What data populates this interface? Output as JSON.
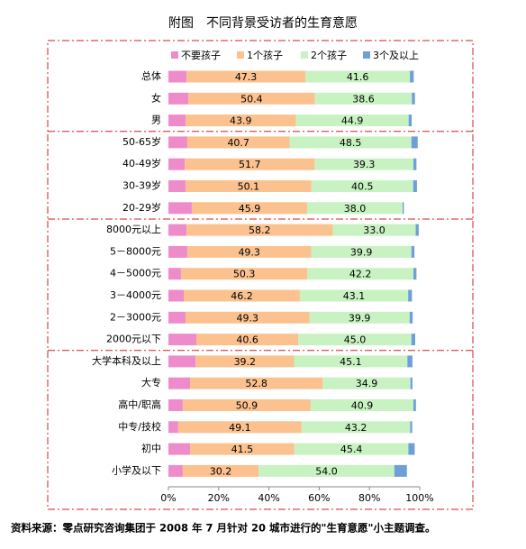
{
  "chart_data": {
    "type": "stacked-barh",
    "title": "附图　不同背景受访者的生育意愿",
    "source": "资料来源：零点研究咨询集团于 2008 年 7 月针对 20 城市进行的\"生育意愿\"小主题调查。",
    "categories": [
      "总体",
      "女",
      "男",
      "50-65岁",
      "40-49岁",
      "30-39岁",
      "20-29岁",
      "8000元以上",
      "5－8000元",
      "4－5000元",
      "3－4000元",
      "2－3000元",
      "2000元以下",
      "大学本科及以上",
      "大专",
      "高中/职高",
      "中专/技校",
      "初中",
      "小学及以下"
    ],
    "series": [
      {
        "name": "不要孩子",
        "color": "#ee8ccb",
        "values": [
          7.2,
          7.9,
          6.8,
          7.5,
          6.5,
          6.8,
          9.3,
          7.2,
          7.5,
          5.0,
          6.1,
          6.8,
          11.1,
          10.8,
          8.6,
          5.7,
          3.9,
          8.6,
          5.7
        ]
      },
      {
        "name": "1个孩子",
        "color": "#fbc28f",
        "values": [
          47.3,
          50.4,
          43.9,
          40.7,
          51.7,
          50.1,
          45.9,
          58.2,
          49.3,
          50.3,
          46.2,
          49.3,
          40.6,
          39.2,
          52.8,
          50.9,
          49.1,
          41.5,
          30.2
        ]
      },
      {
        "name": "2个孩子",
        "color": "#c8f2c2",
        "values": [
          41.6,
          38.6,
          44.9,
          48.5,
          39.3,
          40.5,
          38,
          33,
          39.9,
          42.2,
          43.1,
          39.9,
          45,
          45.1,
          34.9,
          40.9,
          43.2,
          45.4,
          54
        ],
        "value_labels": [
          "41.6",
          "38.6",
          "44.9",
          "48.5",
          "39.3",
          "40.5",
          "38.0",
          "33.0",
          "39.9",
          "42.2",
          "43.1",
          "39.9",
          "45.0",
          "45.1",
          "34.9",
          "40.9",
          "43.2",
          "45.4",
          "54.0"
        ]
      },
      {
        "name": "3个及以上",
        "color": "#6f9fd8",
        "values": [
          1.5,
          1.2,
          1.2,
          2.5,
          1.2,
          1.5,
          0.5,
          1.2,
          1.2,
          1.2,
          1.5,
          1.2,
          1.5,
          2.0,
          0.8,
          1.0,
          0.8,
          2.5,
          5.0
        ]
      }
    ],
    "xlim": [
      0,
      100
    ],
    "xticks": [
      {
        "value": 0,
        "label": "0%"
      },
      {
        "value": 20,
        "label": "20%"
      },
      {
        "value": 40,
        "label": "40%"
      },
      {
        "value": 60,
        "label": "60%"
      },
      {
        "value": 80,
        "label": "80%"
      },
      {
        "value": 100,
        "label": "100%"
      }
    ]
  }
}
